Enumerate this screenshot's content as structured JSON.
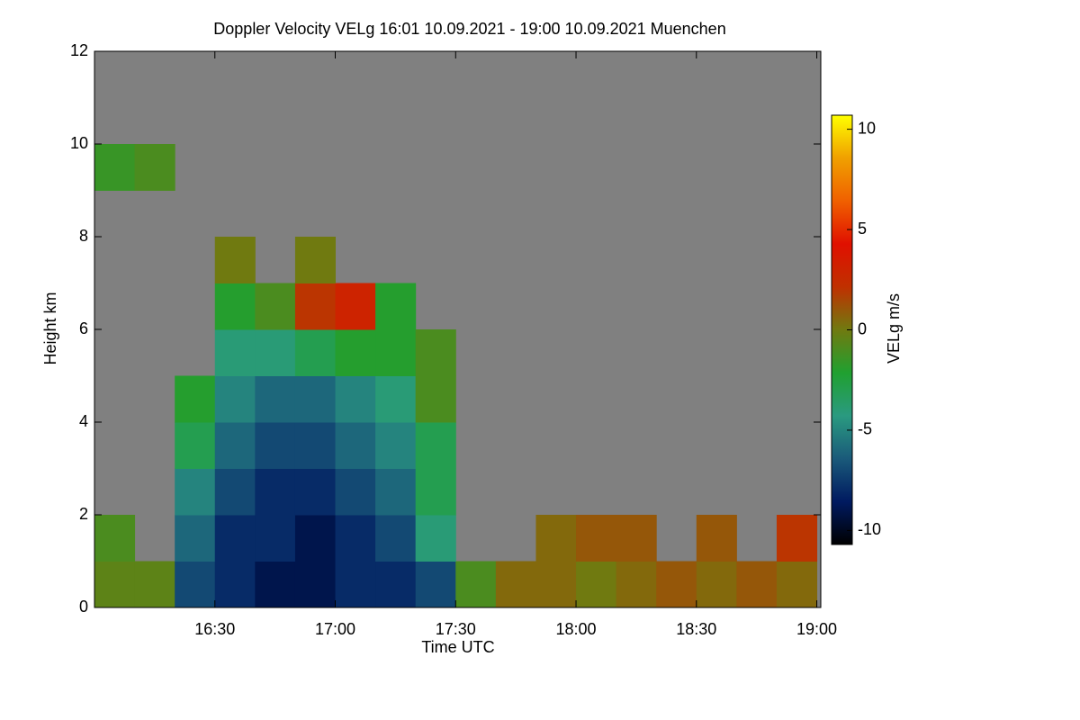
{
  "chart_data": {
    "type": "heatmap",
    "title": "Doppler Velocity VELg   16:01 10.09.2021 - 19:00 10.09.2021 Muenchen",
    "x_label": "Time UTC",
    "y_label": "Height km",
    "colorbar_label": "VELg m/s",
    "xlim": [
      960,
      1141
    ],
    "xticks": [
      {
        "value": 990,
        "label": "16:30"
      },
      {
        "value": 1020,
        "label": "17:00"
      },
      {
        "value": 1050,
        "label": "17:30"
      },
      {
        "value": 1080,
        "label": "18:00"
      },
      {
        "value": 1110,
        "label": "18:30"
      },
      {
        "value": 1140,
        "label": "19:00"
      }
    ],
    "ylim": [
      0,
      12
    ],
    "yticks": [
      0,
      2,
      4,
      6,
      8,
      10,
      12
    ],
    "x_bins": [
      960,
      970,
      980,
      990,
      1000,
      1010,
      1020,
      1030,
      1040,
      1050,
      1060,
      1070,
      1080,
      1090,
      1100,
      1110,
      1120,
      1130,
      1140
    ],
    "y_bins": [
      0,
      1,
      2,
      3,
      4,
      5,
      6,
      7,
      8,
      9,
      10,
      11,
      12
    ],
    "z": [
      [
        -0.5,
        -0.5,
        -7,
        -8,
        -9,
        -9,
        -8,
        -8,
        -7,
        -1,
        0.5,
        0.5,
        0,
        0.5,
        1,
        0.5,
        1,
        0.5
      ],
      [
        -1,
        null,
        -6,
        -8,
        -8,
        -9,
        -8,
        -7,
        -4,
        null,
        null,
        0.5,
        1,
        1,
        null,
        1,
        null,
        2
      ],
      [
        null,
        null,
        -5,
        -7,
        -8,
        -8,
        -7,
        -6,
        -3,
        null,
        null,
        null,
        null,
        null,
        null,
        null,
        null,
        null
      ],
      [
        null,
        null,
        -3,
        -6,
        -7,
        -7,
        -6,
        -5,
        -3,
        null,
        null,
        null,
        null,
        null,
        null,
        null,
        null,
        null
      ],
      [
        null,
        null,
        -2,
        -5,
        -6,
        -6,
        -5,
        -4,
        -1,
        null,
        null,
        null,
        null,
        null,
        null,
        null,
        null,
        null
      ],
      [
        null,
        null,
        null,
        -4,
        -4,
        -3,
        -2,
        -2,
        -1,
        null,
        null,
        null,
        null,
        null,
        null,
        null,
        null,
        null
      ],
      [
        null,
        null,
        null,
        -2,
        -1,
        2,
        3,
        -2,
        null,
        null,
        null,
        null,
        null,
        null,
        null,
        null,
        null,
        null
      ],
      [
        null,
        null,
        null,
        0,
        null,
        0,
        null,
        null,
        null,
        null,
        null,
        null,
        null,
        null,
        null,
        null,
        null,
        null
      ],
      [
        null,
        null,
        null,
        null,
        null,
        null,
        null,
        null,
        null,
        null,
        null,
        null,
        null,
        null,
        null,
        null,
        null,
        null
      ],
      [
        -1.5,
        -1,
        null,
        null,
        null,
        null,
        null,
        null,
        null,
        null,
        null,
        null,
        null,
        null,
        null,
        null,
        null,
        null
      ],
      [
        null,
        null,
        null,
        null,
        null,
        null,
        null,
        null,
        null,
        null,
        null,
        null,
        null,
        null,
        null,
        null,
        null,
        null
      ],
      [
        null,
        null,
        null,
        null,
        null,
        null,
        null,
        null,
        null,
        null,
        null,
        null,
        null,
        null,
        null,
        null,
        null,
        null
      ]
    ],
    "zlim": [
      -10.7,
      10.7
    ],
    "zticks": [
      -10,
      -5,
      0,
      5,
      10
    ],
    "colorscale": [
      "#000000",
      "#001a60",
      "#1a5a7a",
      "#2a9a80",
      "#20a030",
      "#707a10",
      "#c03000",
      "#e01000",
      "#f06000",
      "#f0a000",
      "#ffff00"
    ],
    "no_data_color": "#808080"
  }
}
